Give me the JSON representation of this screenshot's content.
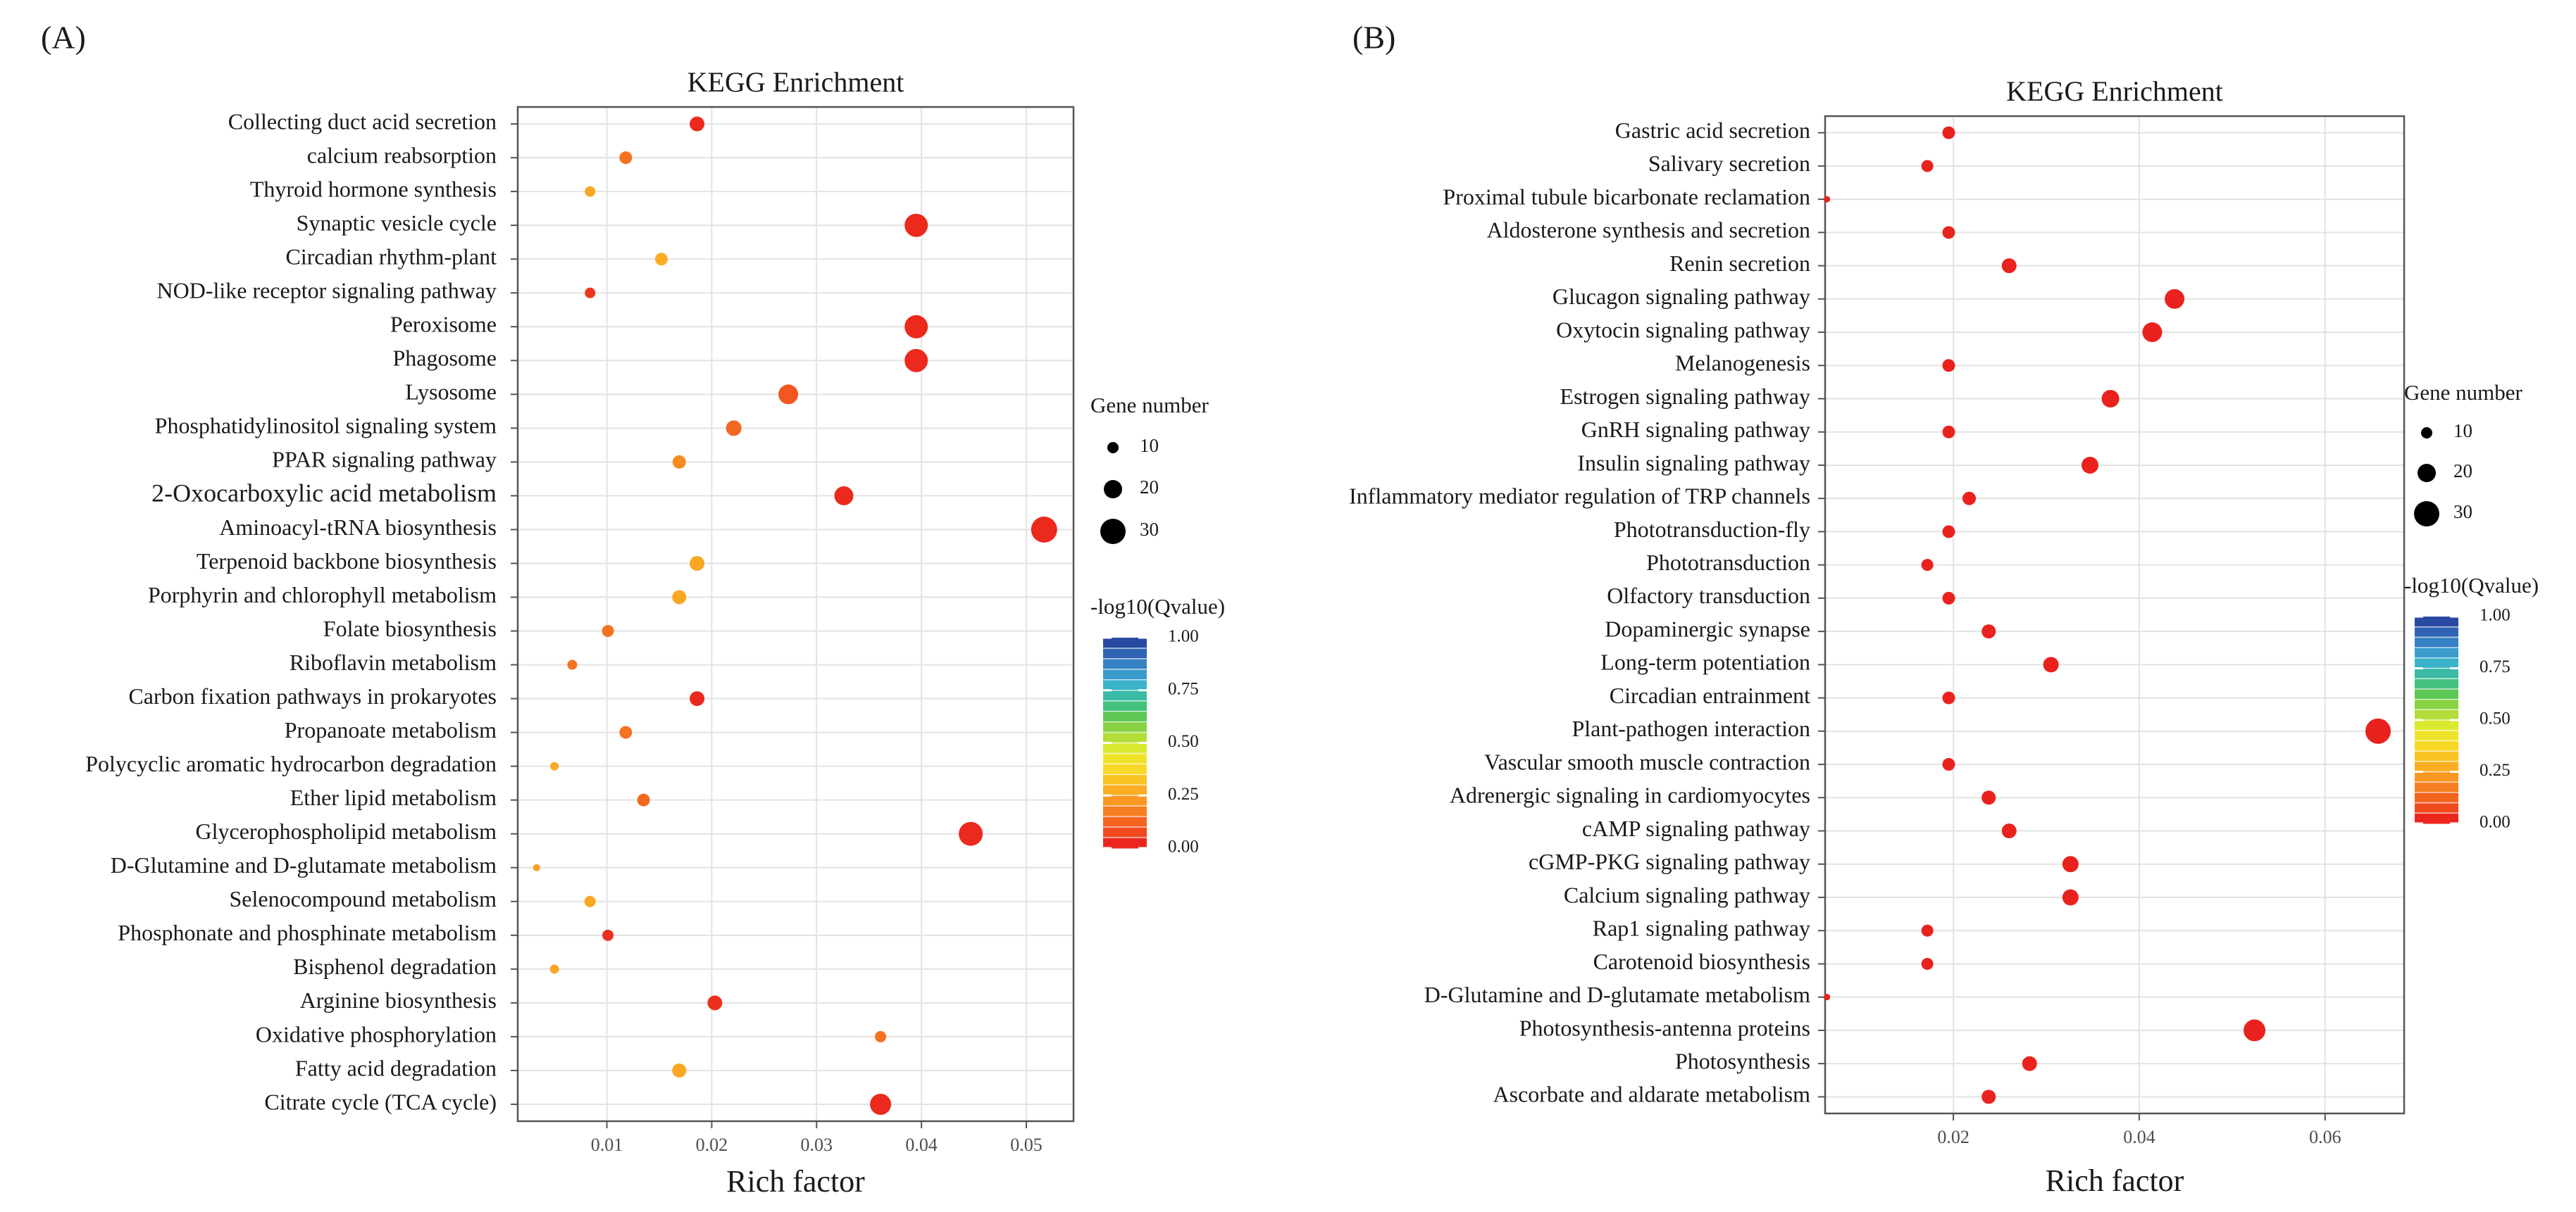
{
  "palette": {
    "low": "#e8141c",
    "colorbar": [
      "#e8141c",
      "#f04a1e",
      "#f57420",
      "#f99a22",
      "#fbbd24",
      "#f8dc26",
      "#e4ea2c",
      "#a8dc3c",
      "#62c84c",
      "#3bbf8c",
      "#3bb6c8",
      "#3a92cc",
      "#2f64b4",
      "#253d99"
    ]
  },
  "chart_data": [
    {
      "type": "scatter",
      "panel_label": "(A)",
      "title": "KEGG Enrichment",
      "xlabel": "Rich factor",
      "ylabel": "",
      "xlim": [
        0.0015,
        0.0545
      ],
      "xticks": [
        0.01,
        0.02,
        0.03,
        0.04,
        0.05
      ],
      "xtick_labels": [
        "0.01",
        "0.02",
        "0.03",
        "0.04",
        "0.05"
      ],
      "grid": true,
      "size_legend": {
        "title": "Gene number",
        "values": [
          10,
          20,
          30
        ],
        "labels": [
          "10",
          "20",
          "30"
        ]
      },
      "color_legend": {
        "title": "-log10(Qvalue)",
        "ticks": [
          "1.00",
          "0.75",
          "0.50",
          "0.25",
          "0.00"
        ]
      },
      "points": [
        {
          "pathway": "Collecting duct acid secretion",
          "rich_factor": 0.0186,
          "gene_number": 15,
          "qvalue": 0.03
        },
        {
          "pathway": "calcium reabsorption",
          "rich_factor": 0.0118,
          "gene_number": 12,
          "qvalue": 0.15
        },
        {
          "pathway": "Thyroid hormone synthesis",
          "rich_factor": 0.0084,
          "gene_number": 9,
          "qvalue": 0.26
        },
        {
          "pathway": "Synaptic vesicle cycle",
          "rich_factor": 0.0395,
          "gene_number": 27,
          "qvalue": 0.03
        },
        {
          "pathway": "Circadian rhythm-plant",
          "rich_factor": 0.0152,
          "gene_number": 12,
          "qvalue": 0.27
        },
        {
          "pathway": "NOD-like receptor signaling pathway",
          "rich_factor": 0.0084,
          "gene_number": 9,
          "qvalue": 0.05
        },
        {
          "pathway": "Peroxisome",
          "rich_factor": 0.0395,
          "gene_number": 27,
          "qvalue": 0.03
        },
        {
          "pathway": "Phagosome",
          "rich_factor": 0.0395,
          "gene_number": 27,
          "qvalue": 0.03
        },
        {
          "pathway": "Lysosome",
          "rich_factor": 0.0273,
          "gene_number": 22,
          "qvalue": 0.1
        },
        {
          "pathway": "Phosphatidylinositol signaling system",
          "rich_factor": 0.0221,
          "gene_number": 16,
          "qvalue": 0.13
        },
        {
          "pathway": "PPAR signaling pathway",
          "rich_factor": 0.0169,
          "gene_number": 13,
          "qvalue": 0.2
        },
        {
          "pathway": "2-Oxocarboxylic acid metabolism",
          "rich_factor": 0.0326,
          "gene_number": 21,
          "qvalue": 0.03
        },
        {
          "pathway": "Aminoacyl-tRNA biosynthesis",
          "rich_factor": 0.0517,
          "gene_number": 31,
          "qvalue": 0.03
        },
        {
          "pathway": "Terpenoid backbone biosynthesis",
          "rich_factor": 0.0186,
          "gene_number": 15,
          "qvalue": 0.26
        },
        {
          "pathway": "Porphyrin and chlorophyll metabolism",
          "rich_factor": 0.0169,
          "gene_number": 14,
          "qvalue": 0.26
        },
        {
          "pathway": "Folate biosynthesis",
          "rich_factor": 0.0101,
          "gene_number": 11,
          "qvalue": 0.15
        },
        {
          "pathway": "Riboflavin metabolism",
          "rich_factor": 0.0067,
          "gene_number": 8,
          "qvalue": 0.15
        },
        {
          "pathway": "Carbon fixation pathways in prokaryotes",
          "rich_factor": 0.0186,
          "gene_number": 15,
          "qvalue": 0.03
        },
        {
          "pathway": "Propanoate metabolism",
          "rich_factor": 0.0118,
          "gene_number": 12,
          "qvalue": 0.15
        },
        {
          "pathway": "Polycyclic aromatic hydrocarbon degradation",
          "rich_factor": 0.005,
          "gene_number": 6,
          "qvalue": 0.26
        },
        {
          "pathway": "Ether lipid metabolism",
          "rich_factor": 0.0135,
          "gene_number": 12,
          "qvalue": 0.13
        },
        {
          "pathway": "Glycerophospholipid metabolism",
          "rich_factor": 0.0447,
          "gene_number": 28,
          "qvalue": 0.03
        },
        {
          "pathway": "D-Glutamine and D-glutamate metabolism",
          "rich_factor": 0.0033,
          "gene_number": 4,
          "qvalue": 0.24
        },
        {
          "pathway": "Selenocompound metabolism",
          "rich_factor": 0.0084,
          "gene_number": 10,
          "qvalue": 0.26
        },
        {
          "pathway": "Phosphonate and phosphinate metabolism",
          "rich_factor": 0.0101,
          "gene_number": 10,
          "qvalue": 0.04
        },
        {
          "pathway": "Bisphenol degradation",
          "rich_factor": 0.005,
          "gene_number": 7,
          "qvalue": 0.26
        },
        {
          "pathway": "Arginine biosynthesis",
          "rich_factor": 0.0203,
          "gene_number": 15,
          "qvalue": 0.04
        },
        {
          "pathway": "Oxidative phosphorylation",
          "rich_factor": 0.0361,
          "gene_number": 10,
          "qvalue": 0.15
        },
        {
          "pathway": "Fatty acid degradation",
          "rich_factor": 0.0169,
          "gene_number": 14,
          "qvalue": 0.26
        },
        {
          "pathway": "Citrate cycle (TCA cycle)",
          "rich_factor": 0.0361,
          "gene_number": 24,
          "qvalue": 0.03
        }
      ]
    },
    {
      "type": "scatter",
      "panel_label": "(B)",
      "title": "KEGG Enrichment",
      "xlabel": "Rich factor",
      "ylabel": "",
      "xlim": [
        0.0062,
        0.0685
      ],
      "xticks": [
        0.02,
        0.04,
        0.06
      ],
      "xtick_labels": [
        "0.02",
        "0.04",
        "0.06"
      ],
      "grid": true,
      "size_legend": {
        "title": "Gene number",
        "values": [
          10,
          20,
          30
        ],
        "labels": [
          "10",
          "20",
          "30"
        ]
      },
      "color_legend": {
        "title": "-log10(Qvalue)",
        "ticks": [
          "1.00",
          "0.75",
          "0.50",
          "0.25",
          "0.00"
        ]
      },
      "points": [
        {
          "pathway": "Gastric acid secretion",
          "rich_factor": 0.0195,
          "gene_number": 12,
          "qvalue": 0.02
        },
        {
          "pathway": "Salivary secretion",
          "rich_factor": 0.0172,
          "gene_number": 11,
          "qvalue": 0.02
        },
        {
          "pathway": "Proximal tubule bicarbonate reclamation",
          "rich_factor": 0.0064,
          "gene_number": 3,
          "qvalue": 0.02
        },
        {
          "pathway": "Aldosterone synthesis and secretion",
          "rich_factor": 0.0195,
          "gene_number": 12,
          "qvalue": 0.02
        },
        {
          "pathway": "Renin secretion",
          "rich_factor": 0.026,
          "gene_number": 15,
          "qvalue": 0.02
        },
        {
          "pathway": "Glucagon signaling pathway",
          "rich_factor": 0.0438,
          "gene_number": 22,
          "qvalue": 0.02
        },
        {
          "pathway": "Oxytocin signaling pathway",
          "rich_factor": 0.0414,
          "gene_number": 22,
          "qvalue": 0.02
        },
        {
          "pathway": "Melanogenesis",
          "rich_factor": 0.0195,
          "gene_number": 12,
          "qvalue": 0.02
        },
        {
          "pathway": "Estrogen signaling pathway",
          "rich_factor": 0.0369,
          "gene_number": 19,
          "qvalue": 0.02
        },
        {
          "pathway": "GnRH signaling pathway",
          "rich_factor": 0.0195,
          "gene_number": 12,
          "qvalue": 0.02
        },
        {
          "pathway": "Insulin signaling pathway",
          "rich_factor": 0.0347,
          "gene_number": 18,
          "qvalue": 0.02
        },
        {
          "pathway": "Inflammatory mediator regulation of TRP channels",
          "rich_factor": 0.0217,
          "gene_number": 13,
          "qvalue": 0.02
        },
        {
          "pathway": "Phototransduction-fly",
          "rich_factor": 0.0195,
          "gene_number": 12,
          "qvalue": 0.02
        },
        {
          "pathway": "Phototransduction",
          "rich_factor": 0.0172,
          "gene_number": 11,
          "qvalue": 0.02
        },
        {
          "pathway": "Olfactory transduction",
          "rich_factor": 0.0195,
          "gene_number": 12,
          "qvalue": 0.02
        },
        {
          "pathway": "Dopaminergic synapse",
          "rich_factor": 0.0238,
          "gene_number": 14,
          "qvalue": 0.02
        },
        {
          "pathway": "Long-term potentiation",
          "rich_factor": 0.0305,
          "gene_number": 16,
          "qvalue": 0.02
        },
        {
          "pathway": "Circadian entrainment",
          "rich_factor": 0.0195,
          "gene_number": 12,
          "qvalue": 0.02
        },
        {
          "pathway": "Plant-pathogen interaction",
          "rich_factor": 0.0657,
          "gene_number": 30,
          "qvalue": 0.02
        },
        {
          "pathway": "Vascular smooth muscle contraction",
          "rich_factor": 0.0195,
          "gene_number": 12,
          "qvalue": 0.02
        },
        {
          "pathway": "Adrenergic signaling in cardiomyocytes",
          "rich_factor": 0.0238,
          "gene_number": 14,
          "qvalue": 0.02
        },
        {
          "pathway": "cAMP signaling pathway",
          "rich_factor": 0.026,
          "gene_number": 15,
          "qvalue": 0.02
        },
        {
          "pathway": "cGMP-PKG signaling pathway",
          "rich_factor": 0.0326,
          "gene_number": 17,
          "qvalue": 0.02
        },
        {
          "pathway": "Calcium signaling pathway",
          "rich_factor": 0.0326,
          "gene_number": 17,
          "qvalue": 0.02
        },
        {
          "pathway": "Rap1 signaling pathway",
          "rich_factor": 0.0172,
          "gene_number": 11,
          "qvalue": 0.02
        },
        {
          "pathway": "Carotenoid biosynthesis",
          "rich_factor": 0.0172,
          "gene_number": 11,
          "qvalue": 0.02
        },
        {
          "pathway": "D-Glutamine and D-glutamate metabolism",
          "rich_factor": 0.0064,
          "gene_number": 3,
          "qvalue": 0.02
        },
        {
          "pathway": "Photosynthesis-antenna proteins",
          "rich_factor": 0.0524,
          "gene_number": 25,
          "qvalue": 0.02
        },
        {
          "pathway": "Photosynthesis",
          "rich_factor": 0.0282,
          "gene_number": 15,
          "qvalue": 0.02
        },
        {
          "pathway": "Ascorbate and aldarate metabolism",
          "rich_factor": 0.0238,
          "gene_number": 14,
          "qvalue": 0.02
        }
      ]
    }
  ]
}
